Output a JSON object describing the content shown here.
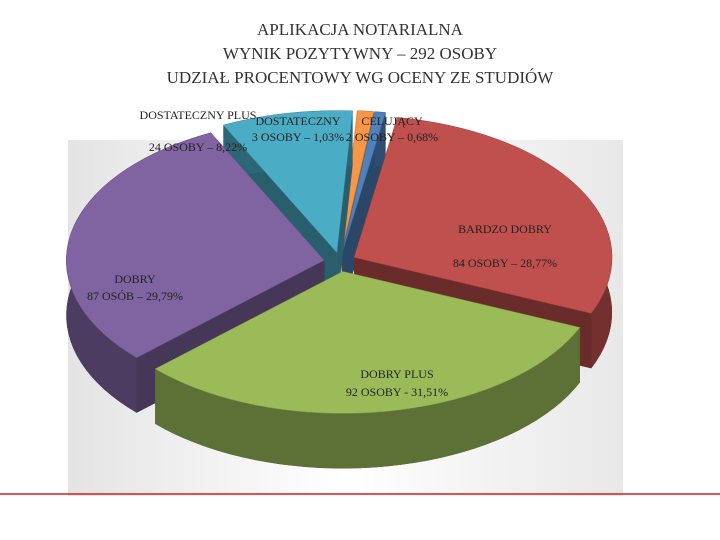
{
  "chart_data": {
    "type": "pie",
    "title": [
      "APLIKACJA NOTARIALNA",
      "WYNIK POZYTYWNY – 292 OSOBY",
      "UDZIAŁ PROCENTOWY WG OCENY ZE STUDIÓW"
    ],
    "categories": [
      "CELUJĄCY",
      "BARDZO DOBRY",
      "DOBRY PLUS",
      "DOBRY",
      "DOSTATECZNY PLUS",
      "DOSTATECZNY"
    ],
    "values": [
      0.68,
      28.77,
      31.51,
      29.79,
      8.22,
      1.03
    ],
    "value_labels": [
      "2 OSOBY – 0,68%",
      "84 OSOBY – 28,77%",
      "92 OSOBY - 31,51%",
      "87 OSÓB – 29,79%",
      "24 OSOBY – 8,22%",
      "3 OSOBY – 1,03%"
    ],
    "colors": [
      "#4f81bd",
      "#c0504d",
      "#9bbb59",
      "#8064a2",
      "#4bacc6",
      "#f79646"
    ]
  }
}
